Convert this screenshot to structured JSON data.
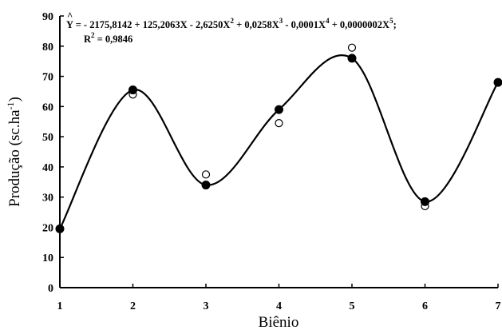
{
  "chart_data": {
    "type": "scatter",
    "xlabel": "Biênio",
    "ylabel_main": "Produção (sc.ha",
    "ylabel_sup": "-1",
    "ylabel_end": ")",
    "xlim": [
      1,
      7
    ],
    "ylim": [
      0,
      90
    ],
    "x_ticks": [
      "1",
      "2",
      "3",
      "4",
      "5",
      "6",
      "7"
    ],
    "y_ticks": [
      "0",
      "10",
      "20",
      "30",
      "40",
      "50",
      "60",
      "70",
      "80",
      "90"
    ],
    "grid": false,
    "equation": {
      "hat": "^",
      "lhs": "Y = - 2175,8142 + 125,2063X - 2,6250X",
      "sup2": "2",
      "mid3": " + 0,0258X",
      "sup3": "3",
      "mid4": " - 0,0001X",
      "sup4": "4",
      "mid5": " + 0,0000002X",
      "sup5": "5",
      "tail": ";",
      "r2_base": "R",
      "r2_sup": "2",
      "r2_val": " = 0,9846"
    },
    "series": [
      {
        "marker": "open-circle",
        "x": [
          1,
          2,
          3,
          4,
          5,
          6,
          7
        ],
        "y": [
          19.5,
          64,
          37.5,
          54.5,
          79.5,
          27,
          68
        ]
      },
      {
        "marker": "filled-circle",
        "x": [
          1,
          2,
          3,
          4,
          5,
          6,
          7
        ],
        "y": [
          19.5,
          65.5,
          34,
          59,
          76,
          28.5,
          68
        ]
      }
    ],
    "fitted_curve_points": [
      19.5,
      65.5,
      34,
      59,
      76,
      28.5,
      68
    ]
  }
}
